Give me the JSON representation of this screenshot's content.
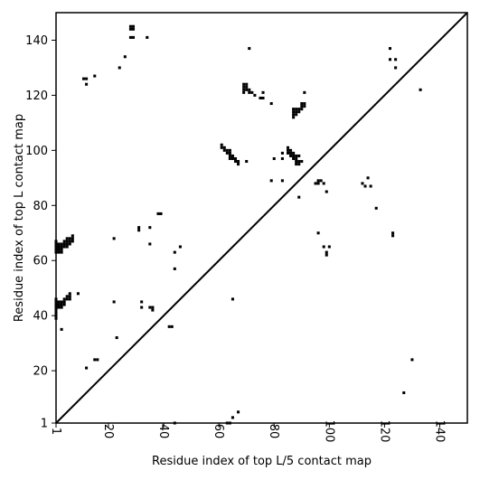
{
  "chart_data": {
    "type": "scatter",
    "title": "",
    "xlabel": "Residue index of top L/5 contact map",
    "ylabel": "Residue index of top L contact map",
    "xlim": [
      1,
      150
    ],
    "ylim": [
      1,
      150
    ],
    "xticks": [
      "1",
      "20",
      "40",
      "60",
      "80",
      "100",
      "120",
      "140"
    ],
    "xtick_values": [
      1,
      20,
      40,
      60,
      80,
      100,
      120,
      140
    ],
    "yticks": [
      "1",
      "20",
      "40",
      "60",
      "80",
      "100",
      "120",
      "140"
    ],
    "ytick_values": [
      1,
      20,
      40,
      60,
      80,
      100,
      120,
      140
    ],
    "diagonal": true,
    "grid": false,
    "marker_color": "#000000",
    "points": [
      [
        1,
        39
      ],
      [
        1,
        40
      ],
      [
        1,
        41
      ],
      [
        1,
        42
      ],
      [
        1,
        43
      ],
      [
        1,
        44
      ],
      [
        1,
        45
      ],
      [
        1,
        46
      ],
      [
        1,
        63
      ],
      [
        1,
        64
      ],
      [
        1,
        65
      ],
      [
        1,
        66
      ],
      [
        1,
        67
      ],
      [
        2,
        43
      ],
      [
        2,
        44
      ],
      [
        2,
        45
      ],
      [
        2,
        63
      ],
      [
        2,
        64
      ],
      [
        2,
        65
      ],
      [
        2,
        66
      ],
      [
        3,
        43
      ],
      [
        3,
        44
      ],
      [
        3,
        45
      ],
      [
        3,
        63
      ],
      [
        3,
        64
      ],
      [
        3,
        65
      ],
      [
        3,
        66
      ],
      [
        4,
        44
      ],
      [
        4,
        45
      ],
      [
        4,
        46
      ],
      [
        4,
        65
      ],
      [
        4,
        66
      ],
      [
        4,
        67
      ],
      [
        5,
        46
      ],
      [
        5,
        47
      ],
      [
        5,
        65
      ],
      [
        5,
        66
      ],
      [
        5,
        67
      ],
      [
        5,
        68
      ],
      [
        6,
        46
      ],
      [
        6,
        47
      ],
      [
        6,
        48
      ],
      [
        6,
        66
      ],
      [
        6,
        67
      ],
      [
        6,
        68
      ],
      [
        7,
        67
      ],
      [
        7,
        68
      ],
      [
        7,
        69
      ],
      [
        3,
        35
      ],
      [
        9,
        48
      ],
      [
        12,
        21
      ],
      [
        12,
        124
      ],
      [
        12,
        126
      ],
      [
        11,
        126
      ],
      [
        15,
        127
      ],
      [
        15,
        24
      ],
      [
        16,
        24
      ],
      [
        22,
        45
      ],
      [
        22,
        68
      ],
      [
        23,
        32
      ],
      [
        24,
        130
      ],
      [
        26,
        134
      ],
      [
        28,
        141
      ],
      [
        28,
        144
      ],
      [
        28,
        145
      ],
      [
        29,
        141
      ],
      [
        29,
        144
      ],
      [
        29,
        145
      ],
      [
        31,
        71
      ],
      [
        31,
        72
      ],
      [
        32,
        43
      ],
      [
        32,
        45
      ],
      [
        34,
        141
      ],
      [
        35,
        66
      ],
      [
        35,
        72
      ],
      [
        35,
        43
      ],
      [
        36,
        42
      ],
      [
        36,
        43
      ],
      [
        38,
        77
      ],
      [
        39,
        77
      ],
      [
        42,
        36
      ],
      [
        43,
        36
      ],
      [
        44,
        1
      ],
      [
        44,
        57
      ],
      [
        44,
        63
      ],
      [
        46,
        65
      ],
      [
        61,
        101
      ],
      [
        61,
        102
      ],
      [
        62,
        100
      ],
      [
        62,
        101
      ],
      [
        63,
        99
      ],
      [
        63,
        100
      ],
      [
        64,
        97
      ],
      [
        64,
        98
      ],
      [
        64,
        99
      ],
      [
        64,
        100
      ],
      [
        65,
        97
      ],
      [
        65,
        98
      ],
      [
        66,
        96
      ],
      [
        66,
        97
      ],
      [
        67,
        95
      ],
      [
        67,
        96
      ],
      [
        70,
        96
      ],
      [
        69,
        121
      ],
      [
        69,
        122
      ],
      [
        69,
        123
      ],
      [
        69,
        124
      ],
      [
        70,
        122
      ],
      [
        70,
        123
      ],
      [
        70,
        124
      ],
      [
        71,
        121
      ],
      [
        71,
        122
      ],
      [
        71,
        137
      ],
      [
        72,
        121
      ],
      [
        73,
        120
      ],
      [
        75,
        119
      ],
      [
        76,
        119
      ],
      [
        76,
        121
      ],
      [
        79,
        117
      ],
      [
        63,
        1
      ],
      [
        64,
        1
      ],
      [
        65,
        3
      ],
      [
        65,
        46
      ],
      [
        67,
        5
      ],
      [
        79,
        89
      ],
      [
        80,
        97
      ],
      [
        83,
        89
      ],
      [
        83,
        97
      ],
      [
        83,
        99
      ],
      [
        85,
        99
      ],
      [
        85,
        100
      ],
      [
        85,
        101
      ],
      [
        86,
        98
      ],
      [
        86,
        99
      ],
      [
        86,
        100
      ],
      [
        87,
        97
      ],
      [
        87,
        98
      ],
      [
        87,
        99
      ],
      [
        88,
        95
      ],
      [
        88,
        96
      ],
      [
        88,
        97
      ],
      [
        88,
        98
      ],
      [
        89,
        95
      ],
      [
        89,
        96
      ],
      [
        89,
        98
      ],
      [
        90,
        96
      ],
      [
        89,
        83
      ],
      [
        87,
        112
      ],
      [
        87,
        113
      ],
      [
        87,
        114
      ],
      [
        87,
        115
      ],
      [
        88,
        113
      ],
      [
        88,
        114
      ],
      [
        88,
        115
      ],
      [
        89,
        114
      ],
      [
        89,
        115
      ],
      [
        90,
        115
      ],
      [
        90,
        116
      ],
      [
        90,
        117
      ],
      [
        91,
        116
      ],
      [
        91,
        117
      ],
      [
        91,
        121
      ],
      [
        95,
        88
      ],
      [
        96,
        88
      ],
      [
        96,
        89
      ],
      [
        97,
        89
      ],
      [
        98,
        88
      ],
      [
        99,
        85
      ],
      [
        96,
        70
      ],
      [
        98,
        65
      ],
      [
        99,
        63
      ],
      [
        99,
        62
      ],
      [
        100,
        65
      ],
      [
        112,
        88
      ],
      [
        113,
        87
      ],
      [
        114,
        90
      ],
      [
        115,
        87
      ],
      [
        117,
        79
      ],
      [
        122,
        137
      ],
      [
        122,
        133
      ],
      [
        124,
        133
      ],
      [
        124,
        130
      ],
      [
        123,
        69
      ],
      [
        123,
        70
      ],
      [
        127,
        12
      ],
      [
        130,
        24
      ],
      [
        133,
        122
      ]
    ]
  }
}
